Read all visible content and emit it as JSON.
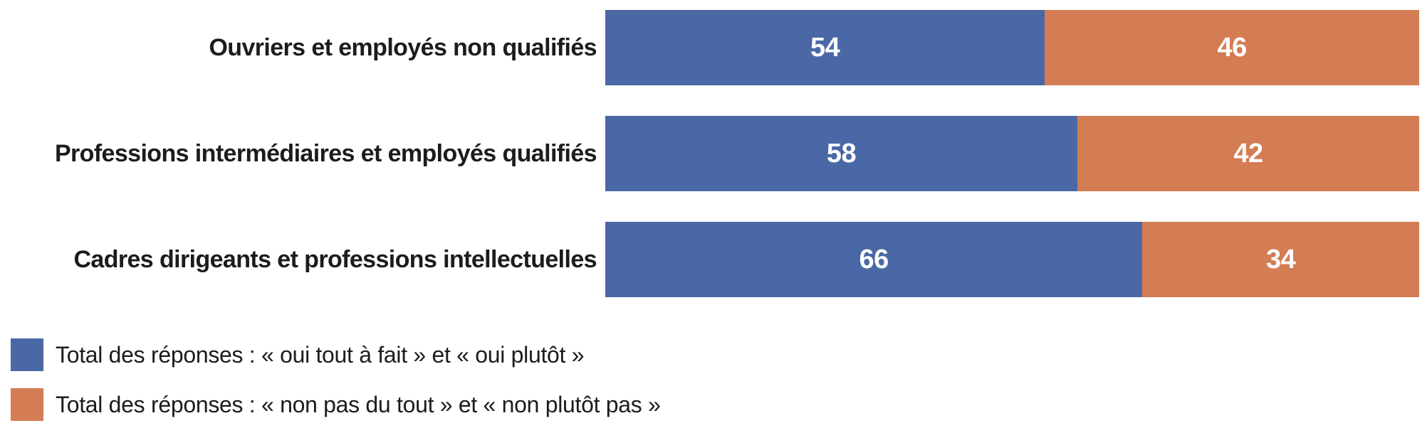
{
  "page": {
    "background": "#ffffff"
  },
  "colors": {
    "oui": "#4a68a5",
    "non": "#d47c53",
    "label_text": "#1c1c1a",
    "value_text": "#ffffff"
  },
  "chart_data": {
    "type": "bar",
    "orientation": "horizontal",
    "stacked": true,
    "unit": "percent",
    "xlim": [
      0,
      100
    ],
    "grid": false,
    "axes_visible": false,
    "value_labels": "inside-center",
    "legend_position": "bottom-left",
    "categories": [
      "Ouvriers et employés non qualifiés",
      "Professions intermédiaires et employés qualifiés",
      "Cadres dirigeants et professions intellectuelles"
    ],
    "series": [
      {
        "name": "Total des réponses : « oui tout à fait » et « oui plutôt »",
        "color": "#4a68a5",
        "values": [
          54,
          58,
          66
        ]
      },
      {
        "name": "Total des réponses : « non pas du tout » et « non plutôt pas »",
        "color": "#d47c53",
        "values": [
          46,
          42,
          34
        ]
      }
    ]
  }
}
